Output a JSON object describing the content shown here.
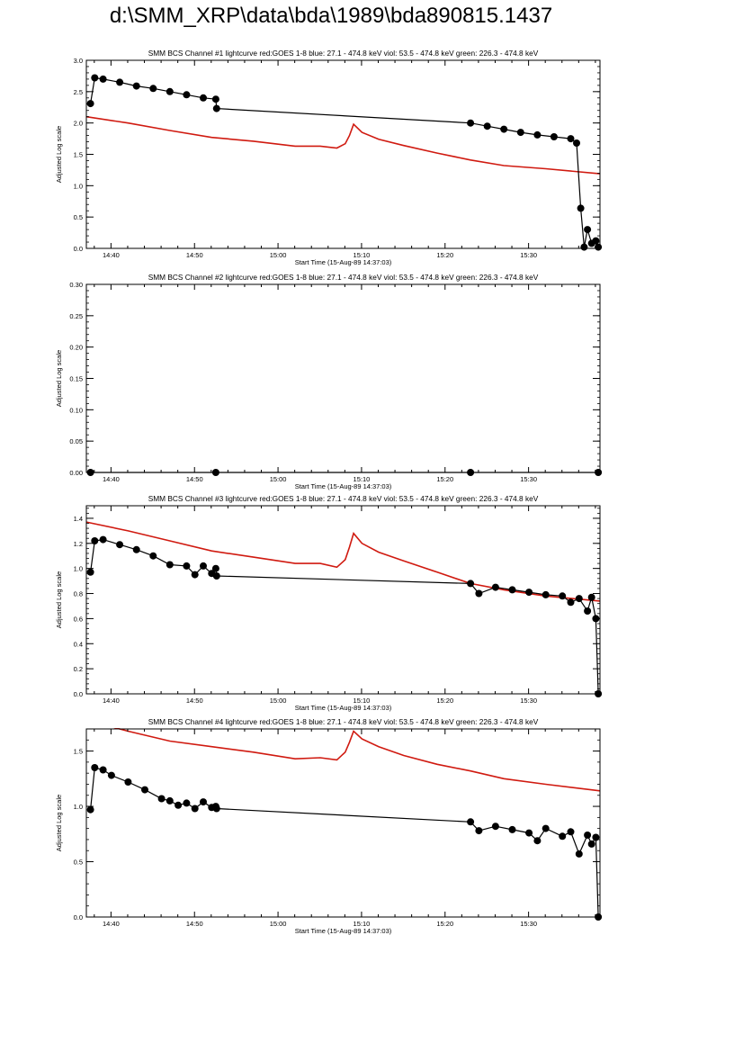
{
  "page": {
    "title": "d:\\SMM_XRP\\data\\bda\\1989\\bda890815.1437"
  },
  "colors": {
    "goes": "#d01a10",
    "bcs": "#000000",
    "axis": "#000000",
    "background": "#ffffff"
  },
  "chart_data": [
    {
      "type": "line",
      "title": "SMM BCS Channel #1 lightcurve  red:GOES 1-8  blue: 27.1 - 474.8 keV  viol: 53.5 - 474.8 keV  green: 226.3 - 474.8 keV",
      "xlabel": "Start Time (15-Aug-89 14:37:03)",
      "ylabel": "Adjusted Log scale",
      "x_ticks": [
        "14:40",
        "14:50",
        "15:00",
        "15:10",
        "15:20",
        "15:30"
      ],
      "x_tick_minutes": [
        2.95,
        12.95,
        22.95,
        32.95,
        42.95,
        52.95
      ],
      "xlim_minutes": [
        0,
        61.5
      ],
      "ylim": [
        0,
        3.0
      ],
      "y_ticks": [
        "0.0",
        "0.5",
        "1.0",
        "1.5",
        "2.0",
        "2.5",
        "3.0"
      ],
      "grid": false,
      "series": [
        {
          "color": "#d01a10",
          "x": [
            0,
            5,
            10,
            15,
            20,
            25,
            28,
            30,
            31,
            31.5,
            32,
            33,
            35,
            38,
            42,
            46,
            50,
            55,
            61.5
          ],
          "y": [
            2.1,
            2.0,
            1.88,
            1.77,
            1.71,
            1.63,
            1.63,
            1.6,
            1.67,
            1.8,
            1.98,
            1.85,
            1.74,
            1.64,
            1.52,
            1.41,
            1.32,
            1.27,
            1.19
          ]
        },
        {
          "color": "#000000",
          "x": [
            0.5,
            1,
            2,
            4,
            6,
            8,
            10,
            12,
            14,
            15.5,
            15.6,
            46,
            48,
            50,
            52,
            54,
            56,
            58,
            58.7,
            59.2,
            59.6,
            60,
            60.5,
            61,
            61.3
          ],
          "y": [
            2.31,
            2.72,
            2.7,
            2.65,
            2.59,
            2.55,
            2.5,
            2.45,
            2.4,
            2.38,
            2.23,
            2.0,
            1.95,
            1.9,
            1.85,
            1.81,
            1.78,
            1.75,
            1.68,
            0.64,
            0.02,
            0.3,
            0.08,
            0.12,
            0.02
          ]
        }
      ]
    },
    {
      "type": "line",
      "title": "SMM BCS Channel #2 lightcurve  red:GOES 1-8  blue: 27.1 - 474.8 keV  viol: 53.5 - 474.8 keV  green: 226.3 - 474.8 keV",
      "xlabel": "Start Time (15-Aug-89 14:37:03)",
      "ylabel": "Adjusted Log scale",
      "x_ticks": [
        "14:40",
        "14:50",
        "15:00",
        "15:10",
        "15:20",
        "15:30"
      ],
      "x_tick_minutes": [
        2.95,
        12.95,
        22.95,
        32.95,
        42.95,
        52.95
      ],
      "xlim_minutes": [
        0,
        61.5
      ],
      "ylim": [
        0,
        0.3
      ],
      "y_ticks": [
        "0.00",
        "0.05",
        "0.10",
        "0.15",
        "0.20",
        "0.25",
        "0.30"
      ],
      "grid": false,
      "series": [
        {
          "color": "#000000",
          "x": [
            0.5,
            15.5,
            46,
            61.3
          ],
          "y": [
            0,
            0,
            0,
            0
          ]
        }
      ]
    },
    {
      "type": "line",
      "title": "SMM BCS Channel #3 lightcurve  red:GOES 1-8  blue: 27.1 - 474.8 keV  viol: 53.5 - 474.8 keV  green: 226.3 - 474.8 keV",
      "xlabel": "Start Time (15-Aug-89 14:37:03)",
      "ylabel": "Adjusted Log scale",
      "x_ticks": [
        "14:40",
        "14:50",
        "15:00",
        "15:10",
        "15:20",
        "15:30"
      ],
      "x_tick_minutes": [
        2.95,
        12.95,
        22.95,
        32.95,
        42.95,
        52.95
      ],
      "xlim_minutes": [
        0,
        61.5
      ],
      "ylim": [
        0,
        1.5
      ],
      "y_ticks": [
        "0.0",
        "0.2",
        "0.4",
        "0.6",
        "0.8",
        "1.0",
        "1.2",
        "1.4"
      ],
      "grid": false,
      "series": [
        {
          "color": "#d01a10",
          "x": [
            0,
            5,
            10,
            15,
            20,
            25,
            28,
            30,
            31,
            31.5,
            32,
            33,
            35,
            38,
            42,
            46,
            50,
            55,
            61.5
          ],
          "y": [
            1.37,
            1.3,
            1.22,
            1.14,
            1.09,
            1.04,
            1.04,
            1.01,
            1.07,
            1.17,
            1.28,
            1.2,
            1.13,
            1.06,
            0.97,
            0.88,
            0.83,
            0.78,
            0.74
          ]
        },
        {
          "color": "#000000",
          "x": [
            0.5,
            1,
            2,
            4,
            6,
            8,
            10,
            12,
            13,
            14,
            15,
            15.5,
            15.6,
            46,
            47,
            49,
            51,
            53,
            55,
            57,
            58,
            59,
            60,
            60.5,
            61,
            61.3
          ],
          "y": [
            0.97,
            1.22,
            1.23,
            1.19,
            1.15,
            1.1,
            1.03,
            1.02,
            0.95,
            1.02,
            0.96,
            1.0,
            0.94,
            0.88,
            0.8,
            0.85,
            0.83,
            0.81,
            0.79,
            0.78,
            0.73,
            0.76,
            0.66,
            0.77,
            0.6,
            0.0
          ]
        }
      ]
    },
    {
      "type": "line",
      "title": "SMM BCS Channel #4 lightcurve  red:GOES 1-8  blue: 27.1 - 474.8 keV  viol: 53.5 - 474.8 keV  green: 226.3 - 474.8 keV",
      "xlabel": "Start Time (15-Aug-89 14:37:03)",
      "ylabel": "Adjusted Log scale",
      "x_ticks": [
        "14:40",
        "14:50",
        "15:00",
        "15:10",
        "15:20",
        "15:30"
      ],
      "x_tick_minutes": [
        2.95,
        12.95,
        22.95,
        32.95,
        42.95,
        52.95
      ],
      "xlim_minutes": [
        0,
        61.5
      ],
      "ylim": [
        0,
        1.7
      ],
      "y_ticks": [
        "0.0",
        "0.5",
        "1.0",
        "1.5"
      ],
      "grid": false,
      "series": [
        {
          "color": "#d01a10",
          "x": [
            0,
            5,
            10,
            15,
            20,
            25,
            28,
            30,
            31,
            31.5,
            32,
            33,
            35,
            38,
            42,
            46,
            50,
            55,
            61.5
          ],
          "y": [
            1.78,
            1.68,
            1.59,
            1.54,
            1.49,
            1.43,
            1.44,
            1.42,
            1.49,
            1.58,
            1.68,
            1.61,
            1.54,
            1.46,
            1.38,
            1.32,
            1.25,
            1.2,
            1.14
          ]
        },
        {
          "color": "#000000",
          "x": [
            0.5,
            1,
            2,
            3,
            5,
            7,
            9,
            10,
            11,
            12,
            13,
            14,
            15,
            15.5,
            15.6,
            46,
            47,
            49,
            51,
            53,
            54,
            55,
            57,
            58,
            59,
            60,
            60.5,
            61,
            61.3
          ],
          "y": [
            0.97,
            1.35,
            1.33,
            1.28,
            1.22,
            1.15,
            1.07,
            1.05,
            1.01,
            1.03,
            0.98,
            1.04,
            0.99,
            1.0,
            0.98,
            0.86,
            0.78,
            0.82,
            0.79,
            0.76,
            0.69,
            0.8,
            0.73,
            0.77,
            0.57,
            0.74,
            0.66,
            0.72,
            0.0
          ]
        }
      ]
    }
  ]
}
